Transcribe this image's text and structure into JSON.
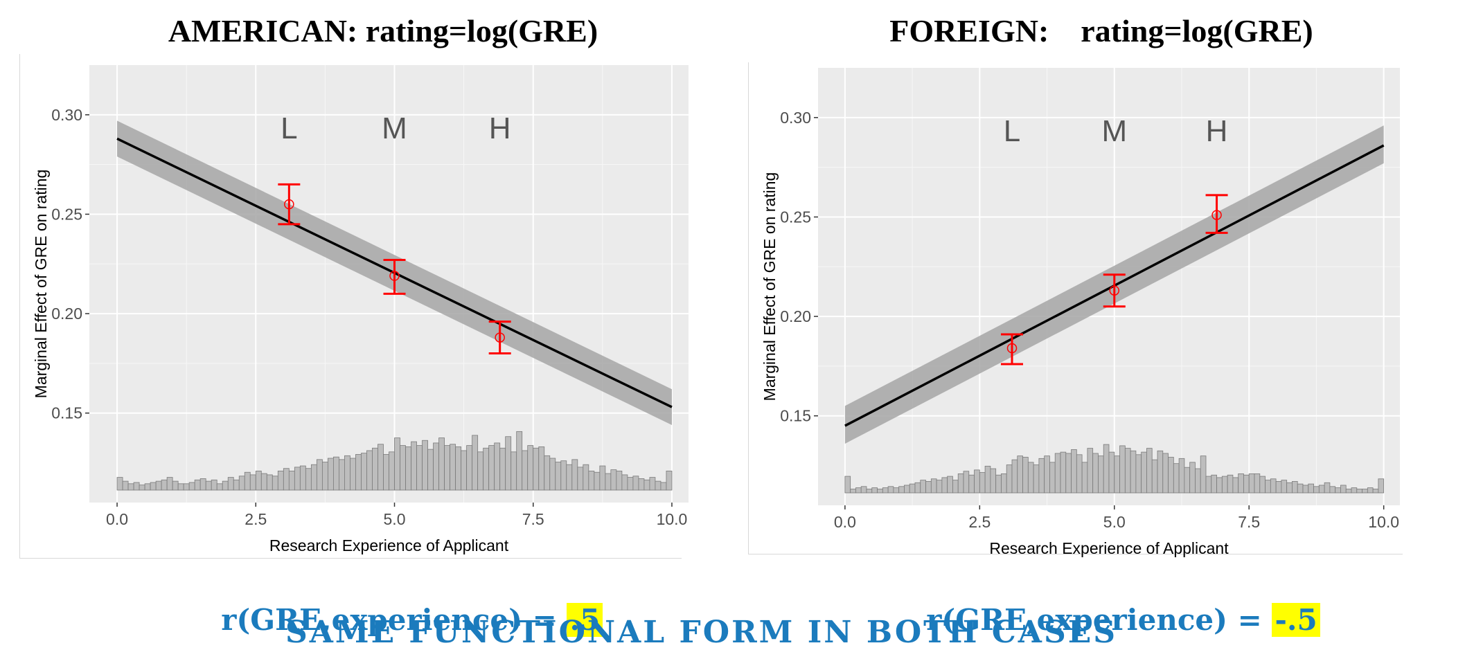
{
  "footer": {
    "left_corr_prefix": "r(GRE,experience) = ",
    "left_corr_value": ".5",
    "right_corr_prefix": "r(GRE,experience) = ",
    "right_corr_value": "-.5",
    "conclusion": "SAME FUNCTIONAL FORM IN BOTH CASES"
  },
  "chart_data": [
    {
      "type": "line",
      "title": "AMERICAN: rating=log(GRE)",
      "xlabel": "Research Experience of Applicant",
      "ylabel": "Marginal Effect of GRE on rating",
      "xlim": [
        -0.5,
        10.3
      ],
      "ylim": [
        0.105,
        0.325
      ],
      "x_ticks": [
        "0.0",
        "2.5",
        "5.0",
        "7.5",
        "10.0"
      ],
      "y_ticks": [
        "0.15",
        "0.20",
        "0.25",
        "0.30"
      ],
      "grid": true,
      "colors": {
        "panel": "#ebebeb",
        "line": "#000000",
        "ribbon": "#a6a6a6",
        "points": "#ff0000",
        "hist": "#bdbdbd"
      },
      "fit_line": {
        "x": [
          0,
          10
        ],
        "y": [
          0.288,
          0.153
        ]
      },
      "ribbon": {
        "x": [
          0,
          10
        ],
        "lower": [
          0.279,
          0.144
        ],
        "upper": [
          0.297,
          0.162
        ]
      },
      "group_labels": [
        {
          "text": "L",
          "x": 3.1
        },
        {
          "text": "M",
          "x": 5.0
        },
        {
          "text": "H",
          "x": 6.9
        }
      ],
      "points": [
        {
          "x": 3.1,
          "y": 0.255,
          "lower": 0.245,
          "upper": 0.265
        },
        {
          "x": 5.0,
          "y": 0.219,
          "lower": 0.21,
          "upper": 0.227
        },
        {
          "x": 6.9,
          "y": 0.188,
          "lower": 0.18,
          "upper": 0.196
        }
      ],
      "histogram": {
        "bins": 100,
        "heights": [
          0.2,
          0.14,
          0.1,
          0.12,
          0.08,
          0.1,
          0.12,
          0.14,
          0.16,
          0.2,
          0.14,
          0.1,
          0.1,
          0.12,
          0.16,
          0.18,
          0.14,
          0.16,
          0.1,
          0.14,
          0.2,
          0.16,
          0.22,
          0.28,
          0.24,
          0.3,
          0.26,
          0.24,
          0.22,
          0.3,
          0.34,
          0.3,
          0.36,
          0.38,
          0.34,
          0.4,
          0.48,
          0.44,
          0.5,
          0.52,
          0.48,
          0.54,
          0.5,
          0.56,
          0.58,
          0.62,
          0.66,
          0.72,
          0.56,
          0.6,
          0.82,
          0.7,
          0.68,
          0.76,
          0.7,
          0.78,
          0.64,
          0.74,
          0.82,
          0.7,
          0.72,
          0.68,
          0.62,
          0.7,
          0.86,
          0.6,
          0.66,
          0.7,
          0.74,
          0.66,
          0.84,
          0.6,
          0.92,
          0.62,
          0.7,
          0.66,
          0.68,
          0.54,
          0.5,
          0.44,
          0.46,
          0.4,
          0.48,
          0.36,
          0.4,
          0.3,
          0.28,
          0.38,
          0.26,
          0.32,
          0.3,
          0.24,
          0.2,
          0.22,
          0.18,
          0.16,
          0.2,
          0.14,
          0.12,
          0.3
        ]
      }
    },
    {
      "type": "line",
      "title": "FOREIGN:    rating=log(GRE)",
      "xlabel": "Research Experience of Applicant",
      "ylabel": "Marginal Effect of GRE on rating",
      "xlim": [
        -0.5,
        10.3
      ],
      "ylim": [
        0.105,
        0.325
      ],
      "x_ticks": [
        "0.0",
        "2.5",
        "5.0",
        "7.5",
        "10.0"
      ],
      "y_ticks": [
        "0.15",
        "0.20",
        "0.25",
        "0.30"
      ],
      "grid": true,
      "colors": {
        "panel": "#ebebeb",
        "line": "#000000",
        "ribbon": "#a6a6a6",
        "points": "#ff0000",
        "hist": "#bdbdbd"
      },
      "fit_line": {
        "x": [
          0,
          10
        ],
        "y": [
          0.145,
          0.286
        ]
      },
      "ribbon": {
        "x": [
          0,
          10
        ],
        "lower": [
          0.136,
          0.277
        ],
        "upper": [
          0.155,
          0.296
        ]
      },
      "group_labels": [
        {
          "text": "L",
          "x": 3.1
        },
        {
          "text": "M",
          "x": 5.0
        },
        {
          "text": "H",
          "x": 6.9
        }
      ],
      "points": [
        {
          "x": 3.1,
          "y": 0.184,
          "lower": 0.176,
          "upper": 0.191
        },
        {
          "x": 5.0,
          "y": 0.213,
          "lower": 0.205,
          "upper": 0.221
        },
        {
          "x": 6.9,
          "y": 0.251,
          "lower": 0.242,
          "upper": 0.261
        }
      ],
      "histogram": {
        "bins": 100,
        "heights": [
          0.26,
          0.06,
          0.08,
          0.1,
          0.06,
          0.08,
          0.06,
          0.08,
          0.1,
          0.08,
          0.1,
          0.12,
          0.14,
          0.16,
          0.2,
          0.18,
          0.22,
          0.2,
          0.24,
          0.26,
          0.2,
          0.3,
          0.34,
          0.28,
          0.36,
          0.32,
          0.42,
          0.38,
          0.28,
          0.3,
          0.44,
          0.52,
          0.58,
          0.56,
          0.48,
          0.44,
          0.54,
          0.58,
          0.48,
          0.62,
          0.64,
          0.62,
          0.68,
          0.6,
          0.48,
          0.7,
          0.62,
          0.58,
          0.76,
          0.64,
          0.58,
          0.74,
          0.7,
          0.66,
          0.6,
          0.64,
          0.7,
          0.52,
          0.66,
          0.62,
          0.56,
          0.46,
          0.54,
          0.4,
          0.48,
          0.38,
          0.58,
          0.26,
          0.28,
          0.24,
          0.26,
          0.28,
          0.24,
          0.3,
          0.28,
          0.3,
          0.3,
          0.26,
          0.2,
          0.22,
          0.18,
          0.2,
          0.16,
          0.18,
          0.14,
          0.12,
          0.14,
          0.1,
          0.12,
          0.16,
          0.1,
          0.08,
          0.12,
          0.06,
          0.08,
          0.06,
          0.06,
          0.08,
          0.06,
          0.22
        ]
      }
    }
  ]
}
